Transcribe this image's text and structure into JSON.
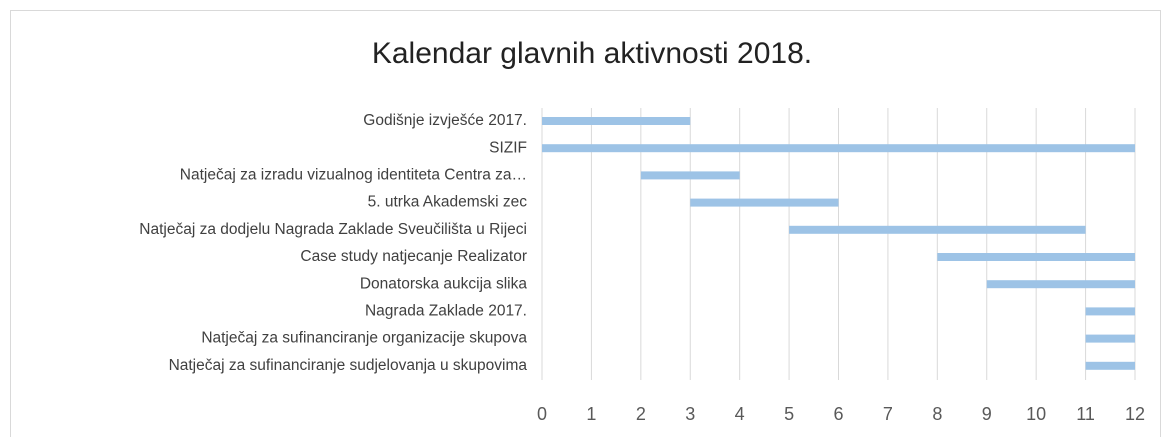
{
  "chart_data": {
    "type": "gantt",
    "title": "Kalendar glavnih aktivnosti 2018.",
    "categories": [
      "Godišnje izvješće 2017.",
      "SIZIF",
      "Natječaj za izradu vizualnog identiteta Centra za…",
      "5. utrka Akademski zec",
      "Natječaj za dodjelu Nagrada Zaklade Sveučilišta u Rijeci",
      "Case study natjecanje Realizator",
      "Donatorska aukcija slika",
      "Nagrada Zaklade 2017.",
      "Natječaj za sufinanciranje organizacije skupova",
      "Natječaj za sufinanciranje sudjelovanja u skupovima"
    ],
    "start": [
      0,
      0,
      2,
      3,
      5,
      8,
      9,
      11,
      11,
      11
    ],
    "end": [
      3,
      12,
      4,
      6,
      11,
      12,
      12,
      12,
      12,
      12
    ],
    "color": "#9dc3e6",
    "xlim": [
      0,
      12
    ],
    "xticks": [
      0,
      1,
      2,
      3,
      4,
      5,
      6,
      7,
      8,
      9,
      10,
      11,
      12
    ],
    "grid": true
  }
}
